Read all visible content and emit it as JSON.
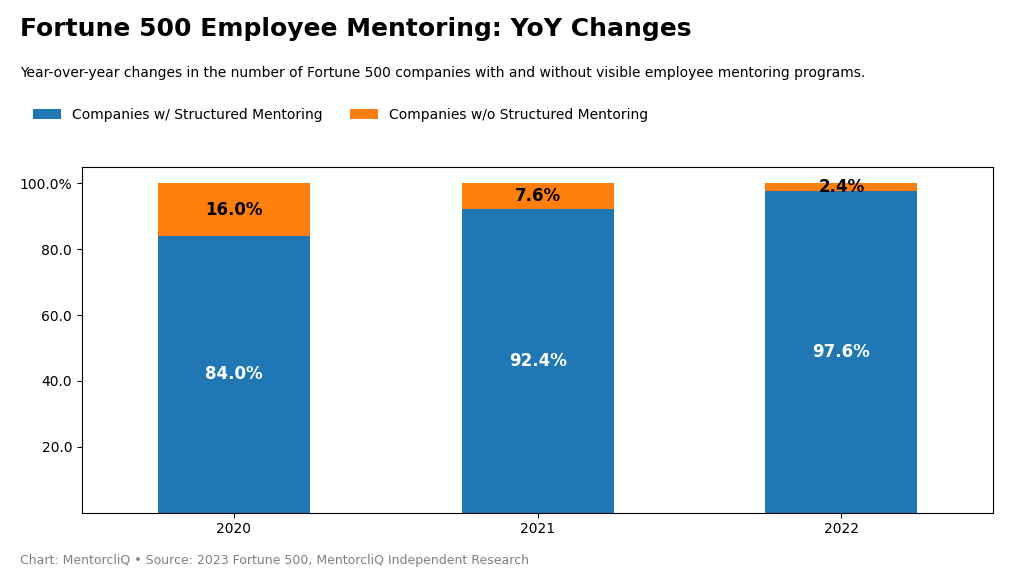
{
  "chart_data": {
    "type": "bar",
    "stacked": true,
    "title": "Fortune 500 Employee Mentoring: YoY Changes",
    "subtitle": "Year-over-year changes in the number of Fortune 500 companies with and without visible employee mentoring programs.",
    "footnote": "Chart: MentorcliQ • Source: 2023 Fortune 500, MentorcliQ Independent Research",
    "categories": [
      "2020",
      "2021",
      "2022"
    ],
    "series": [
      {
        "name": "Companies w/ Structured Mentoring",
        "values": [
          84.0,
          92.4,
          97.6
        ],
        "value_labels": [
          "84.0%",
          "92.4%",
          "97.6%"
        ]
      },
      {
        "name": "Companies w/o Structured Mentoring",
        "values": [
          16.0,
          7.6,
          2.4
        ],
        "value_labels": [
          "16.0%",
          "7.6%",
          "2.4%"
        ]
      }
    ],
    "ylim": [
      0,
      105
    ],
    "yticks": [
      {
        "value": 20,
        "label": "20.0"
      },
      {
        "value": 40,
        "label": "40.0"
      },
      {
        "value": 60,
        "label": "60.0"
      },
      {
        "value": 80,
        "label": "80.0"
      },
      {
        "value": 100,
        "label": "100.0%"
      }
    ],
    "data_labels": true,
    "legend": "upper left",
    "grid": false
  }
}
